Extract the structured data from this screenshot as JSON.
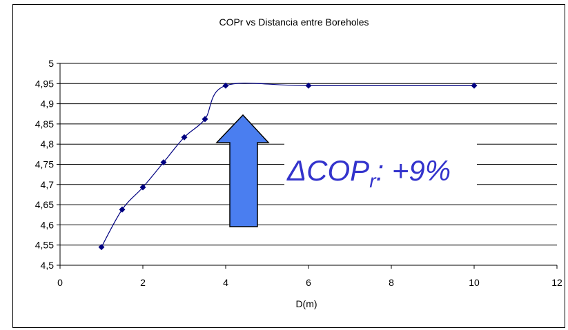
{
  "chart_data": {
    "type": "line",
    "title": "COPr vs Distancia entre Boreholes",
    "xlabel": "D(m)",
    "ylabel": "",
    "xlim": [
      0,
      12
    ],
    "ylim": [
      4.5,
      5.0
    ],
    "x_ticks": [
      "0",
      "2",
      "4",
      "6",
      "8",
      "10",
      "12"
    ],
    "y_ticks": [
      "4,5",
      "4,55",
      "4,6",
      "4,65",
      "4,7",
      "4,75",
      "4,8",
      "4,85",
      "4,9",
      "4,95",
      "5"
    ],
    "grid": "horizontal",
    "series": [
      {
        "x": [
          1,
          1.5,
          2,
          2.5,
          3,
          3.5,
          4,
          6,
          10
        ],
        "y": [
          4.545,
          4.638,
          4.693,
          4.755,
          4.817,
          4.862,
          4.945,
          4.945,
          4.945
        ],
        "color": "#000080",
        "marker": "diamond",
        "smooth": true
      }
    ],
    "annotations": [
      {
        "type": "arrow-up",
        "color": "#4a7ef0"
      },
      {
        "type": "text",
        "text": "ΔCOP",
        "subscript": "r",
        "suffix": ": +9%",
        "color": "#3333cc"
      }
    ]
  }
}
